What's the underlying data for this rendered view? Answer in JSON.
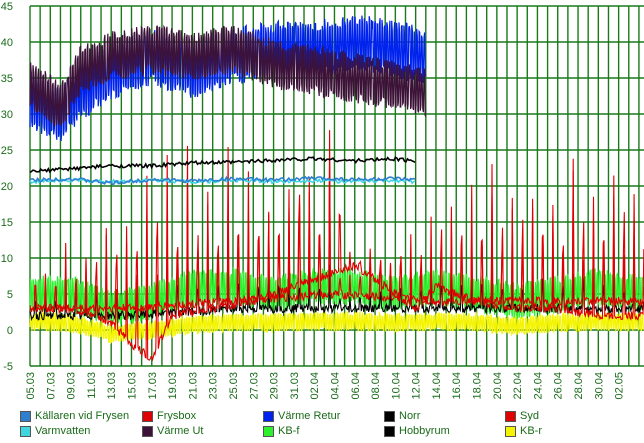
{
  "chart_data": {
    "type": "line",
    "title": "",
    "xlabel": "",
    "ylabel": "",
    "ylim": [
      -5,
      45
    ],
    "y_ticks": [
      -5,
      0,
      5,
      10,
      15,
      20,
      25,
      30,
      35,
      40,
      45
    ],
    "x_ticks": [
      "05.03",
      "07.03",
      "09.03",
      "11.03",
      "13.03",
      "15.03",
      "17.03",
      "19.03",
      "21.03",
      "23.03",
      "25.03",
      "27.03",
      "29.03",
      "31.03",
      "02.04",
      "04.04",
      "06.04",
      "08.04",
      "10.04",
      "12.04",
      "14.04",
      "16.04",
      "18.04",
      "20.04",
      "22.04",
      "24.04",
      "26.04",
      "28.04",
      "30.04",
      "02.05"
    ],
    "grid": true,
    "grid_color": "#1a7a1a",
    "legend_position": "bottom",
    "series": [
      {
        "name": "Källaren vid Frysen",
        "color": "#2e7fd0",
        "kind": "smooth",
        "points": [
          [
            0,
            20.8
          ],
          [
            4,
            21.0
          ],
          [
            8,
            20.4
          ],
          [
            12,
            20.9
          ],
          [
            16,
            20.7
          ],
          [
            20,
            21.0
          ],
          [
            24,
            20.8
          ],
          [
            28,
            21.1
          ],
          [
            32,
            20.9
          ],
          [
            36,
            21.0
          ],
          [
            38,
            20.8
          ]
        ]
      },
      {
        "name": "Frysbox",
        "color": "#e00000",
        "kind": "spiky",
        "points": [
          [
            0,
            3
          ],
          [
            4,
            3
          ],
          [
            8,
            1
          ],
          [
            10,
            -2
          ],
          [
            12,
            -4
          ],
          [
            14,
            2
          ],
          [
            18,
            3
          ],
          [
            22,
            4
          ],
          [
            26,
            6
          ],
          [
            30,
            8
          ],
          [
            32,
            9
          ],
          [
            36,
            5
          ],
          [
            38,
            3
          ],
          [
            40,
            6
          ],
          [
            44,
            4
          ],
          [
            48,
            3
          ],
          [
            52,
            3
          ],
          [
            56,
            2
          ],
          [
            60,
            2
          ],
          [
            60.5,
            3
          ]
        ],
        "peaks": [
          12,
          11,
          12,
          14,
          10,
          16,
          13,
          15,
          14,
          17,
          18,
          20,
          18,
          25,
          24,
          22,
          25,
          23,
          18,
          22,
          24,
          20,
          28,
          22,
          18,
          24,
          30,
          26,
          22,
          28,
          30
        ]
      },
      {
        "name": "Värme Retur",
        "color": "#0022ee",
        "kind": "band",
        "points": [
          [
            0,
            32
          ],
          [
            3,
            30
          ],
          [
            5,
            33
          ],
          [
            8,
            36
          ],
          [
            12,
            38
          ],
          [
            16,
            36
          ],
          [
            20,
            38
          ],
          [
            24,
            39
          ],
          [
            28,
            39
          ],
          [
            32,
            40
          ],
          [
            36,
            39
          ],
          [
            39,
            38
          ]
        ],
        "amplitude": 4.0
      },
      {
        "name": "Norr",
        "color": "#000000",
        "kind": "smooth",
        "points": [
          [
            0,
            22.0
          ],
          [
            4,
            22.4
          ],
          [
            8,
            22.8
          ],
          [
            12,
            22.8
          ],
          [
            16,
            23.2
          ],
          [
            20,
            23.3
          ],
          [
            24,
            23.6
          ],
          [
            28,
            23.8
          ],
          [
            32,
            23.5
          ],
          [
            36,
            23.8
          ],
          [
            38,
            23.4
          ]
        ]
      },
      {
        "name": "Syd",
        "color": "#e00000",
        "kind": "spiky",
        "points": [
          [
            0,
            3
          ],
          [
            10,
            3
          ],
          [
            20,
            4
          ],
          [
            30,
            5
          ],
          [
            40,
            4
          ],
          [
            50,
            4
          ],
          [
            60,
            4
          ],
          [
            60.5,
            4
          ]
        ],
        "peaks": [
          10,
          9,
          12,
          10,
          14,
          12,
          16,
          18,
          20,
          22,
          24,
          26,
          28,
          30,
          26,
          28,
          24,
          22,
          26,
          28,
          30,
          27,
          25,
          24,
          26,
          28,
          30,
          26,
          28,
          30
        ]
      },
      {
        "name": "Varmvatten",
        "color": "#3fd6e0",
        "kind": "smooth",
        "points": [
          [
            0,
            20.6
          ],
          [
            4,
            20.8
          ],
          [
            8,
            20.6
          ],
          [
            12,
            20.8
          ],
          [
            16,
            20.6
          ],
          [
            20,
            20.8
          ],
          [
            24,
            20.6
          ],
          [
            28,
            20.8
          ],
          [
            32,
            20.6
          ],
          [
            36,
            20.8
          ],
          [
            38,
            20.6
          ]
        ]
      },
      {
        "name": "Värme Ut",
        "color": "#3d1238",
        "kind": "band",
        "points": [
          [
            0,
            34
          ],
          [
            3,
            31
          ],
          [
            5,
            36
          ],
          [
            8,
            38
          ],
          [
            12,
            39
          ],
          [
            16,
            38
          ],
          [
            20,
            39
          ],
          [
            24,
            37
          ],
          [
            28,
            36
          ],
          [
            32,
            35
          ],
          [
            36,
            34
          ],
          [
            39,
            33
          ]
        ],
        "amplitude": 3.5
      },
      {
        "name": "KB-f",
        "color": "#2ef02e",
        "kind": "band",
        "points": [
          [
            0,
            5
          ],
          [
            4,
            5
          ],
          [
            8,
            3
          ],
          [
            12,
            4
          ],
          [
            16,
            6
          ],
          [
            20,
            6
          ],
          [
            24,
            5
          ],
          [
            28,
            6
          ],
          [
            32,
            6
          ],
          [
            36,
            5
          ],
          [
            40,
            6
          ],
          [
            44,
            5
          ],
          [
            48,
            4
          ],
          [
            52,
            5
          ],
          [
            56,
            6
          ],
          [
            60.5,
            5
          ]
        ],
        "amplitude": 2.6
      },
      {
        "name": "Hobbyrum",
        "color": "#000000",
        "kind": "spiky",
        "points": [
          [
            0,
            2
          ],
          [
            10,
            2
          ],
          [
            20,
            3
          ],
          [
            30,
            3
          ],
          [
            40,
            3
          ],
          [
            50,
            3
          ],
          [
            60,
            3
          ],
          [
            60.5,
            3
          ]
        ],
        "peaks": [
          6,
          5,
          7,
          6,
          8,
          7,
          9,
          8,
          10,
          9,
          11,
          10,
          12,
          11,
          12,
          11,
          10,
          9,
          10,
          11,
          12,
          10,
          9,
          10,
          11,
          12,
          11,
          10,
          9,
          10
        ]
      },
      {
        "name": "KB-r",
        "color": "#f4f400",
        "kind": "band",
        "points": [
          [
            0,
            1.2
          ],
          [
            4,
            1.0
          ],
          [
            8,
            -0.5
          ],
          [
            12,
            0.0
          ],
          [
            16,
            0.8
          ],
          [
            20,
            1.0
          ],
          [
            24,
            1.0
          ],
          [
            28,
            1.2
          ],
          [
            32,
            1.2
          ],
          [
            36,
            1.0
          ],
          [
            40,
            1.2
          ],
          [
            44,
            1.0
          ],
          [
            48,
            0.6
          ],
          [
            52,
            1.0
          ],
          [
            56,
            1.2
          ],
          [
            60.5,
            1.0
          ]
        ],
        "amplitude": 1.3
      }
    ]
  }
}
